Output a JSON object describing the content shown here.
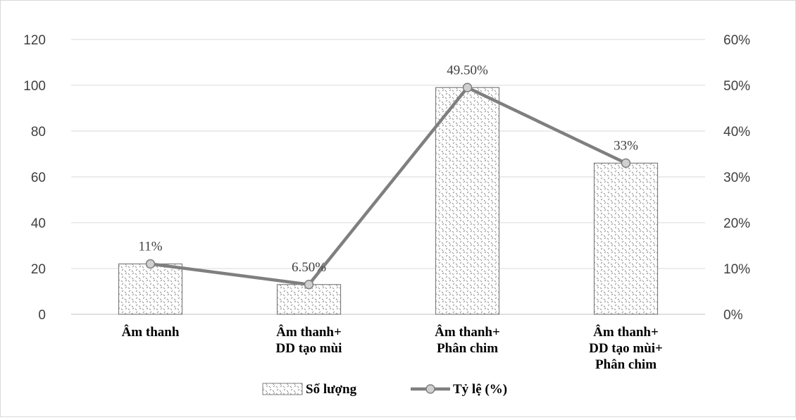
{
  "chart_data": {
    "type": "bar",
    "categories": [
      [
        "Âm thanh"
      ],
      [
        "Âm thanh+",
        "DD tạo mùi"
      ],
      [
        "Âm thanh+",
        "Phân chim"
      ],
      [
        "Âm thanh+",
        "DD tạo mùi+",
        "Phân chim"
      ]
    ],
    "series": [
      {
        "name": "Số lượng",
        "kind": "bar",
        "axis": "left",
        "values": [
          22,
          13,
          99,
          66
        ],
        "color": "#ffffff",
        "pattern": "dotted"
      },
      {
        "name": "Tỷ lệ (%)",
        "kind": "line",
        "axis": "right",
        "values": [
          11,
          6.5,
          49.5,
          33
        ],
        "data_labels": [
          "11%",
          "6.50%",
          "49.50%",
          "33%"
        ],
        "color": "#7f7f7f"
      }
    ],
    "left_axis": {
      "ylim": [
        0,
        120
      ],
      "ticks": [
        "0",
        "20",
        "40",
        "60",
        "80",
        "100",
        "120"
      ]
    },
    "right_axis": {
      "ylim": [
        0,
        60
      ],
      "ticks": [
        "0%",
        "10%",
        "20%",
        "30%",
        "40%",
        "50%",
        "60%"
      ]
    },
    "grid": true,
    "legend_position": "bottom"
  }
}
